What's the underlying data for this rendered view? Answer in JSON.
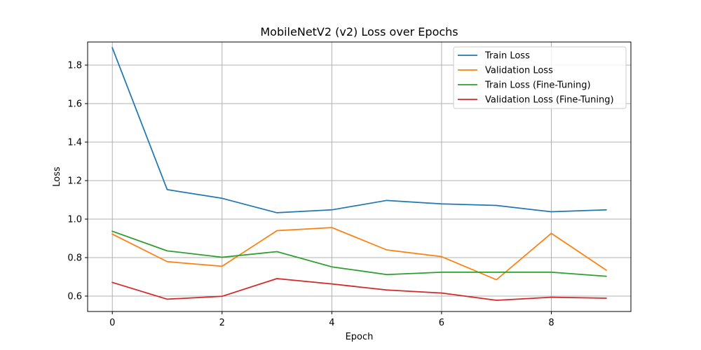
{
  "chart_data": {
    "type": "line",
    "title": "MobileNetV2 (v2) Loss over Epochs",
    "xlabel": "Epoch",
    "ylabel": "Loss",
    "x": [
      0,
      1,
      2,
      3,
      4,
      5,
      6,
      7,
      8,
      9
    ],
    "xlim": [
      -0.45,
      9.45
    ],
    "ylim": [
      0.52,
      1.92
    ],
    "xticks": [
      0,
      2,
      4,
      6,
      8
    ],
    "yticks": [
      0.6,
      0.8,
      1.0,
      1.2,
      1.4,
      1.6,
      1.8
    ],
    "xtick_labels": [
      "0",
      "2",
      "4",
      "6",
      "8"
    ],
    "ytick_labels": [
      "0.6",
      "0.8",
      "1.0",
      "1.2",
      "1.4",
      "1.6",
      "1.8"
    ],
    "grid": true,
    "legend_position": "top-right",
    "series": [
      {
        "name": "Train Loss",
        "color": "#1f77b4",
        "values": [
          1.89,
          1.153,
          1.108,
          1.033,
          1.048,
          1.097,
          1.079,
          1.071,
          1.038,
          1.048
        ]
      },
      {
        "name": "Validation Loss",
        "color": "#ff7f0e",
        "values": [
          0.922,
          0.779,
          0.755,
          0.94,
          0.956,
          0.84,
          0.805,
          0.685,
          0.926,
          0.735
        ]
      },
      {
        "name": "Train Loss (Fine-Tuning)",
        "color": "#2ca02c",
        "values": [
          0.937,
          0.835,
          0.802,
          0.831,
          0.752,
          0.712,
          0.724,
          0.724,
          0.724,
          0.703
        ]
      },
      {
        "name": "Validation Loss (Fine-Tuning)",
        "color": "#d62728",
        "values": [
          0.671,
          0.584,
          0.599,
          0.691,
          0.663,
          0.632,
          0.616,
          0.578,
          0.594,
          0.589
        ]
      }
    ]
  }
}
